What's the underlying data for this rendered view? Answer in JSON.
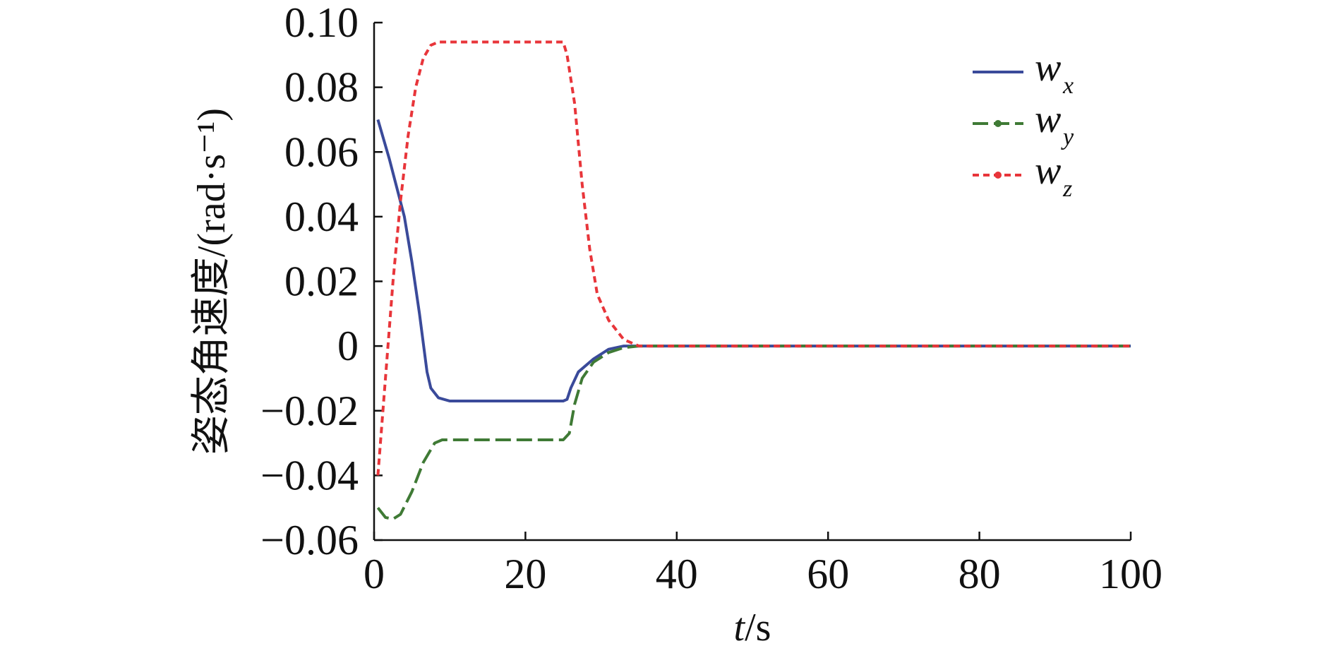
{
  "chart_data": {
    "type": "line",
    "xlabel": {
      "var": "t",
      "unit": "/s"
    },
    "ylabel": "姿态角速度/(rad·s⁻¹)",
    "xlim": [
      0,
      100
    ],
    "ylim": [
      -0.06,
      0.1
    ],
    "xticks": [
      "0",
      "20",
      "40",
      "60",
      "80",
      "100"
    ],
    "yticks": [
      "0.10",
      "0.08",
      "0.06",
      "0.04",
      "0.02",
      "0",
      "−0.02",
      "−0.04",
      "−0.06"
    ],
    "legend_position": "top-right",
    "grid": false,
    "series": [
      {
        "name": "w",
        "subscript": "x",
        "color": "#3a4a9a",
        "dash": "solid",
        "points": [
          [
            0.5,
            0.07
          ],
          [
            2,
            0.058
          ],
          [
            4,
            0.04
          ],
          [
            5,
            0.026
          ],
          [
            6,
            0.01
          ],
          [
            7,
            -0.008
          ],
          [
            7.5,
            -0.013
          ],
          [
            8.5,
            -0.016
          ],
          [
            10,
            -0.017
          ],
          [
            15,
            -0.017
          ],
          [
            20,
            -0.017
          ],
          [
            25,
            -0.017
          ],
          [
            25.5,
            -0.0165
          ],
          [
            26,
            -0.013
          ],
          [
            27,
            -0.008
          ],
          [
            29,
            -0.004
          ],
          [
            31,
            -0.001
          ],
          [
            33,
            0.0
          ],
          [
            40,
            0.0
          ],
          [
            100,
            0.0
          ]
        ]
      },
      {
        "name": "w",
        "subscript": "y",
        "color": "#3f7a35",
        "dash": "long-dash",
        "points": [
          [
            0.5,
            -0.05
          ],
          [
            1.5,
            -0.053
          ],
          [
            2.5,
            -0.0535
          ],
          [
            3.5,
            -0.052
          ],
          [
            5,
            -0.045
          ],
          [
            6.5,
            -0.036
          ],
          [
            8,
            -0.03
          ],
          [
            9,
            -0.029
          ],
          [
            15,
            -0.029
          ],
          [
            20,
            -0.029
          ],
          [
            25,
            -0.029
          ],
          [
            25.8,
            -0.027
          ],
          [
            26.5,
            -0.018
          ],
          [
            27.5,
            -0.01
          ],
          [
            29,
            -0.005
          ],
          [
            31,
            -0.002
          ],
          [
            33,
            -0.0005
          ],
          [
            35,
            0.0
          ],
          [
            100,
            0.0
          ]
        ]
      },
      {
        "name": "w",
        "subscript": "z",
        "color": "#e8353a",
        "dash": "short-dash",
        "points": [
          [
            0.5,
            -0.04
          ],
          [
            1.5,
            -0.01
          ],
          [
            2.5,
            0.02
          ],
          [
            3.5,
            0.045
          ],
          [
            4.5,
            0.065
          ],
          [
            5.5,
            0.08
          ],
          [
            6.5,
            0.089
          ],
          [
            7.5,
            0.093
          ],
          [
            8.5,
            0.094
          ],
          [
            15,
            0.094
          ],
          [
            20,
            0.094
          ],
          [
            25,
            0.094
          ],
          [
            25.5,
            0.09
          ],
          [
            26.5,
            0.075
          ],
          [
            27.5,
            0.05
          ],
          [
            28.5,
            0.03
          ],
          [
            29.5,
            0.016
          ],
          [
            31,
            0.008
          ],
          [
            33,
            0.002
          ],
          [
            35,
            0.0
          ],
          [
            100,
            0.0
          ]
        ]
      }
    ]
  }
}
